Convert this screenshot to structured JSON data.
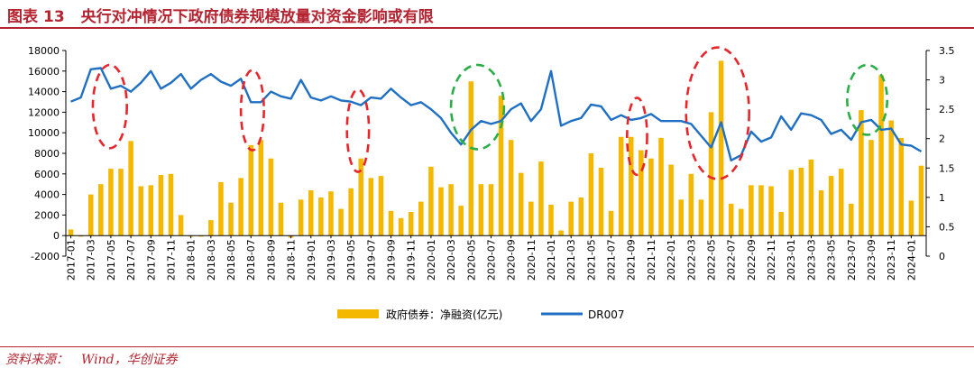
{
  "figure": {
    "label": "图表",
    "number": "13",
    "title": "央行对冲情况下政府债券规模放量对资金影响或有限"
  },
  "source": {
    "label": "资料来源：",
    "text": "Wind，华创证券"
  },
  "chart_data": {
    "type": "bar+line",
    "x_tick_labels": [
      "2017-01",
      "2017-03",
      "2017-05",
      "2017-07",
      "2017-09",
      "2017-11",
      "2018-01",
      "2018-03",
      "2018-05",
      "2018-07",
      "2018-09",
      "2018-11",
      "2019-01",
      "2019-03",
      "2019-05",
      "2019-07",
      "2019-09",
      "2019-11",
      "2020-01",
      "2020-03",
      "2020-05",
      "2020-07",
      "2020-09",
      "2020-11",
      "2021-01",
      "2021-03",
      "2021-05",
      "2021-07",
      "2021-09",
      "2021-11",
      "2022-01",
      "2022-03",
      "2022-05",
      "2022-07",
      "2022-09",
      "2022-11",
      "2023-01",
      "2023-03",
      "2023-05",
      "2023-07",
      "2023-09",
      "2023-11",
      "2024-01"
    ],
    "left_axis": {
      "min": -2000,
      "max": 18000,
      "step": 2000,
      "tick_labels": [
        "-2000",
        "0",
        "2000",
        "4000",
        "6000",
        "8000",
        "10000",
        "12000",
        "14000",
        "16000",
        "18000"
      ]
    },
    "right_axis": {
      "min": 0,
      "max": 3.5,
      "step": 0.5,
      "tick_labels": [
        "0",
        "0.5",
        "1",
        "1.5",
        "2",
        "2.5",
        "3",
        "3.5"
      ]
    },
    "series": [
      {
        "name": "政府债券：净融资(亿元)",
        "kind": "bar",
        "axis": "left",
        "color": "#f5b800",
        "values": [
          600,
          -100,
          4000,
          5000,
          6500,
          6500,
          9200,
          4800,
          4900,
          5900,
          6000,
          2000,
          -100,
          -100,
          1500,
          5200,
          3200,
          5600,
          8800,
          9300,
          7500,
          3200,
          -200,
          3500,
          4400,
          3700,
          4300,
          2600,
          4600,
          7500,
          5600,
          5800,
          2400,
          1700,
          2300,
          3300,
          6700,
          4700,
          5000,
          2900,
          15000,
          5000,
          5000,
          13600,
          9300,
          6100,
          3300,
          7200,
          3000,
          500,
          3300,
          3700,
          8000,
          6600,
          2400,
          9600,
          9600,
          8300,
          7500,
          9500,
          6900,
          3500,
          6000,
          3500,
          12000,
          17000,
          3100,
          2600,
          4900,
          4900,
          4800,
          2300,
          6400,
          6600,
          7400,
          4400,
          5800,
          6500,
          3100,
          12200,
          9300,
          15600,
          11200,
          9500,
          3400,
          6800
        ]
      },
      {
        "name": "DR007",
        "kind": "line",
        "axis": "right",
        "color": "#1f6fc4",
        "values": [
          2.63,
          2.7,
          3.18,
          3.2,
          2.85,
          2.9,
          2.8,
          2.95,
          3.15,
          2.85,
          2.95,
          3.1,
          2.85,
          3.0,
          3.1,
          2.97,
          2.9,
          3.02,
          2.62,
          2.62,
          2.8,
          2.72,
          2.68,
          3.0,
          2.7,
          2.65,
          2.72,
          2.65,
          2.63,
          2.57,
          2.7,
          2.68,
          2.85,
          2.7,
          2.57,
          2.62,
          2.5,
          2.35,
          2.1,
          1.9,
          2.15,
          2.3,
          2.25,
          2.3,
          2.5,
          2.6,
          2.3,
          2.5,
          3.15,
          2.22,
          2.3,
          2.35,
          2.58,
          2.55,
          2.32,
          2.4,
          2.32,
          2.35,
          2.42,
          2.3,
          2.3,
          2.3,
          2.25,
          2.05,
          1.85,
          2.28,
          1.63,
          1.72,
          2.12,
          1.95,
          2.02,
          2.38,
          2.15,
          2.43,
          2.4,
          2.32,
          2.08,
          2.15,
          1.98,
          2.28,
          2.32,
          2.15,
          2.17,
          1.9,
          1.88,
          1.78
        ]
      }
    ],
    "highlight_ellipses": [
      {
        "color": "#e8252a",
        "month_start": 2.2,
        "month_end": 5.6,
        "y_low": 8500,
        "y_high": 16600
      },
      {
        "color": "#e8252a",
        "month_start": 17.0,
        "month_end": 19.3,
        "y_low": 8300,
        "y_high": 16100
      },
      {
        "color": "#e8252a",
        "month_start": 27.6,
        "month_end": 29.8,
        "y_low": 6200,
        "y_high": 14200
      },
      {
        "color": "#2bae49",
        "month_start": 38.0,
        "month_end": 43.3,
        "y_low": 8400,
        "y_high": 16600
      },
      {
        "color": "#e8252a",
        "month_start": 55.6,
        "month_end": 57.6,
        "y_low": 5900,
        "y_high": 13400
      },
      {
        "color": "#e8252a",
        "month_start": 61.5,
        "month_end": 67.8,
        "y_low": 5500,
        "y_high": 18300
      },
      {
        "color": "#2bae49",
        "month_start": 77.6,
        "month_end": 81.6,
        "y_low": 9800,
        "y_high": 16600
      }
    ],
    "legend_position": "bottom-center",
    "grid": false
  }
}
